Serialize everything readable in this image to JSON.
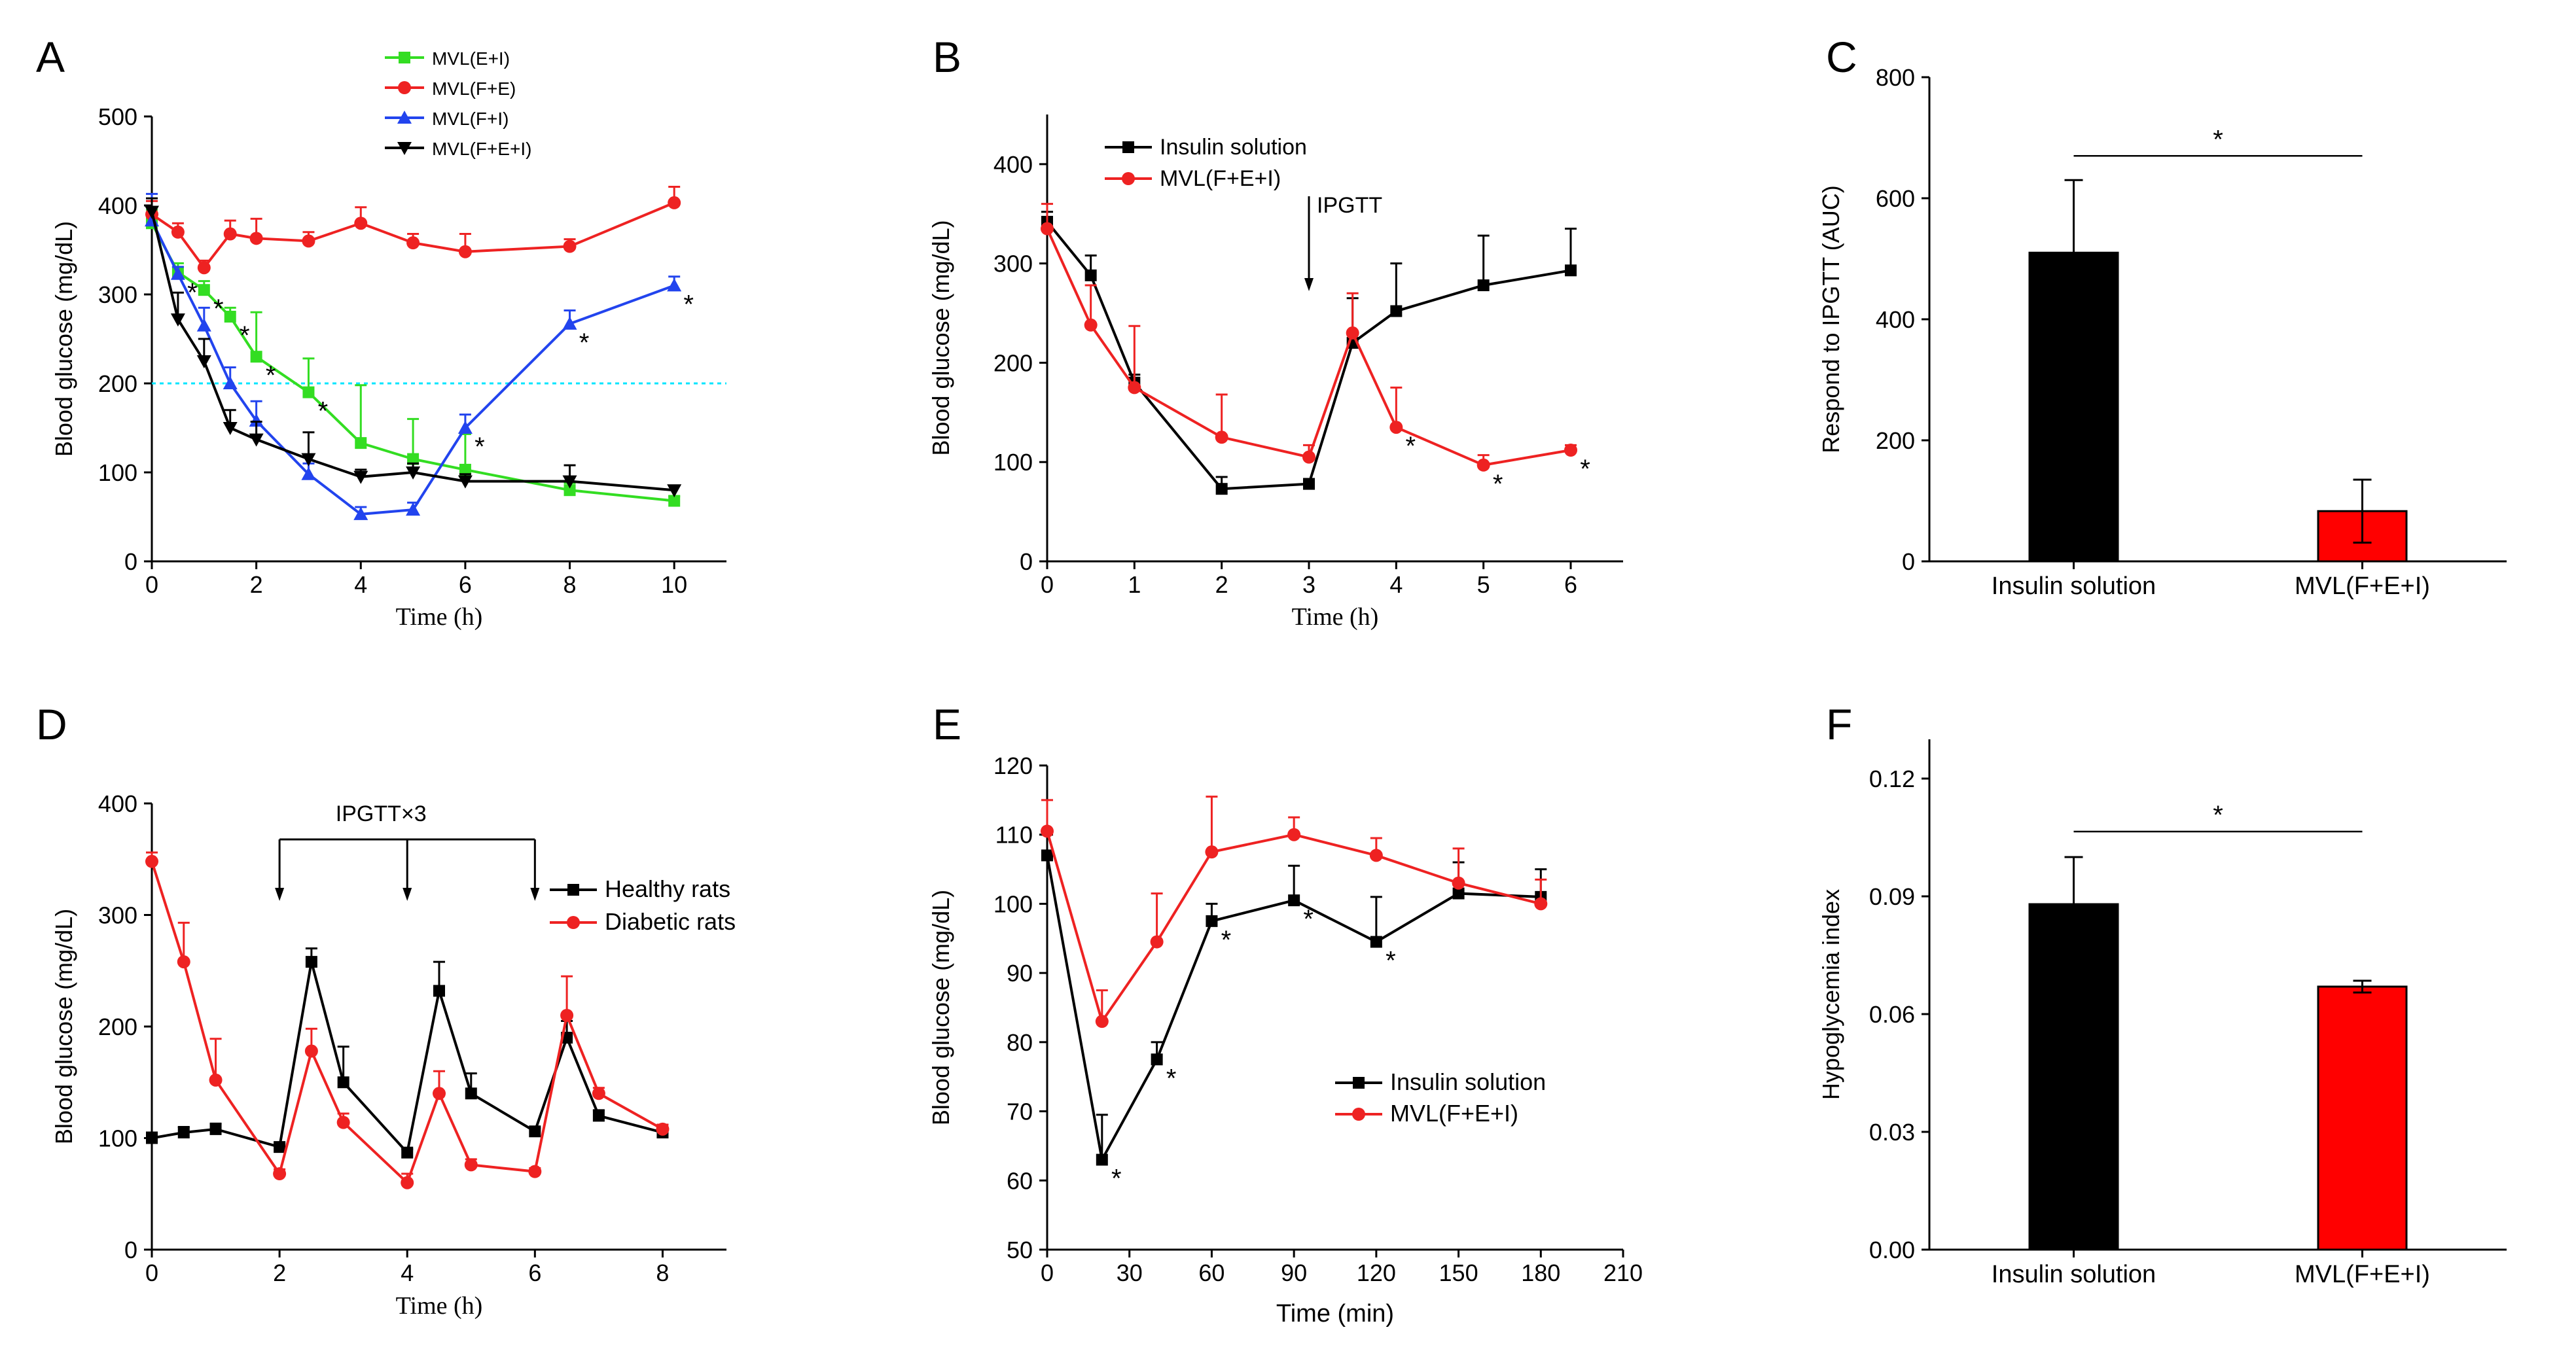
{
  "chart_data": [
    {
      "panel": "A",
      "type": "line",
      "xlabel": "Time (h)",
      "ylabel": "Blood glucose (mg/dL)",
      "xlim": [
        0,
        11
      ],
      "ylim": [
        0,
        500
      ],
      "xticks": [
        0,
        2,
        4,
        6,
        8,
        10
      ],
      "yticks": [
        0,
        100,
        200,
        300,
        400,
        500
      ],
      "reference_line": {
        "y": 200,
        "color": "#00e5ff"
      },
      "legend_position": "top-center",
      "series": [
        {
          "name": "MVL(E+I)",
          "color": "#33dd22",
          "marker": "square",
          "x": [
            0,
            0.5,
            1,
            1.5,
            2,
            3,
            4,
            5,
            6,
            8,
            10
          ],
          "y": [
            380,
            325,
            305,
            275,
            230,
            190,
            133,
            115,
            103,
            80,
            68
          ],
          "err": [
            15,
            10,
            10,
            10,
            50,
            38,
            65,
            45,
            40,
            8,
            5
          ],
          "sig": [
            false,
            false,
            true,
            true,
            true,
            true,
            false,
            false,
            false,
            false,
            false
          ]
        },
        {
          "name": "MVL(F+E)",
          "color": "#ee2222",
          "marker": "circle",
          "x": [
            0,
            0.5,
            1,
            1.5,
            2,
            3,
            4,
            5,
            6,
            8,
            10
          ],
          "y": [
            390,
            370,
            330,
            368,
            363,
            360,
            380,
            358,
            348,
            354,
            403
          ],
          "err": [
            15,
            10,
            8,
            15,
            22,
            10,
            18,
            10,
            20,
            8,
            18
          ],
          "sig": [
            false,
            false,
            false,
            false,
            false,
            false,
            false,
            false,
            false,
            false,
            false
          ]
        },
        {
          "name": "MVL(F+I)",
          "color": "#2244ee",
          "marker": "triangle",
          "x": [
            0,
            0.5,
            1,
            1.5,
            2,
            3,
            4,
            5,
            6,
            8,
            10
          ],
          "y": [
            383,
            323,
            265,
            200,
            158,
            98,
            53,
            58,
            150,
            267,
            310
          ],
          "err": [
            30,
            8,
            20,
            18,
            22,
            12,
            8,
            8,
            15,
            15,
            10
          ],
          "sig": [
            false,
            true,
            false,
            false,
            false,
            false,
            false,
            false,
            true,
            true,
            true
          ]
        },
        {
          "name": "MVL(F+E+I)",
          "color": "#000000",
          "marker": "triangle-down",
          "x": [
            0,
            0.5,
            1,
            1.5,
            2,
            3,
            4,
            5,
            6,
            8,
            10
          ],
          "y": [
            393,
            272,
            225,
            150,
            137,
            115,
            95,
            100,
            90,
            90,
            80
          ],
          "err": [
            15,
            30,
            25,
            20,
            20,
            30,
            8,
            10,
            8,
            18,
            5
          ],
          "sig": [
            false,
            false,
            false,
            false,
            false,
            false,
            false,
            false,
            false,
            false,
            false
          ]
        }
      ]
    },
    {
      "panel": "B",
      "type": "line",
      "xlabel": "Time (h)",
      "ylabel": "Blood glucose (mg/dL)",
      "xlim": [
        0,
        6.6
      ],
      "ylim": [
        0,
        450
      ],
      "xticks": [
        0,
        1,
        2,
        3,
        4,
        5,
        6
      ],
      "yticks": [
        0,
        100,
        200,
        300,
        400
      ],
      "annotation": {
        "text": "IPGTT",
        "x": 3
      },
      "legend_position": "top-left",
      "series": [
        {
          "name": "Insulin solution",
          "color": "#000000",
          "marker": "square",
          "x": [
            0,
            0.5,
            1,
            2,
            3,
            3.5,
            4,
            5,
            6
          ],
          "y": [
            342,
            288,
            180,
            73,
            78,
            220,
            252,
            278,
            293
          ],
          "err": [
            10,
            20,
            8,
            12,
            5,
            45,
            48,
            50,
            42
          ],
          "sig": [
            false,
            false,
            false,
            false,
            false,
            false,
            false,
            false,
            false
          ]
        },
        {
          "name": "MVL(F+E+I)",
          "color": "#ee2222",
          "marker": "circle",
          "x": [
            0,
            0.5,
            1,
            2,
            3,
            3.5,
            4,
            5,
            6
          ],
          "y": [
            335,
            238,
            175,
            125,
            105,
            230,
            135,
            97,
            112
          ],
          "err": [
            25,
            40,
            62,
            43,
            12,
            40,
            40,
            10,
            5
          ],
          "sig": [
            false,
            false,
            false,
            false,
            false,
            false,
            true,
            true,
            true
          ]
        }
      ]
    },
    {
      "panel": "C",
      "type": "bar",
      "xlabel": "",
      "ylabel": "Respond to IPGTT (AUC)",
      "ylim": [
        0,
        800
      ],
      "yticks": [
        0,
        200,
        400,
        600,
        800
      ],
      "categories": [
        "Insulin solution",
        "MVL(F+E+I)"
      ],
      "values": [
        510,
        83
      ],
      "err": [
        120,
        52
      ],
      "colors": [
        "#000000",
        "#ff0000"
      ],
      "significance": "*"
    },
    {
      "panel": "D",
      "type": "line",
      "xlabel": "Time (h)",
      "ylabel": "Blood glucose (mg/dL)",
      "xlim": [
        0,
        9
      ],
      "ylim": [
        0,
        400
      ],
      "xticks": [
        0,
        2,
        4,
        6,
        8
      ],
      "yticks": [
        0,
        100,
        200,
        300,
        400
      ],
      "annotation": {
        "text": "IPGTT×3",
        "x": [
          2,
          4,
          6
        ]
      },
      "legend_position": "top-right",
      "series": [
        {
          "name": "Healthy rats",
          "color": "#000000",
          "marker": "square",
          "x": [
            0,
            0.5,
            1,
            2,
            2.5,
            3,
            4,
            4.5,
            5,
            6,
            6.5,
            7,
            8
          ],
          "y": [
            100,
            105,
            108,
            92,
            258,
            150,
            87,
            232,
            140,
            106,
            190,
            120,
            105
          ],
          "err": [
            5,
            5,
            5,
            3,
            12,
            32,
            3,
            26,
            18,
            3,
            15,
            5,
            3
          ],
          "sig": [
            false,
            false,
            false,
            false,
            false,
            false,
            false,
            false,
            false,
            false,
            false,
            false,
            false
          ]
        },
        {
          "name": "Diabetic rats",
          "color": "#ee2222",
          "marker": "circle",
          "x": [
            0,
            0.5,
            1,
            2,
            2.5,
            3,
            4,
            4.5,
            5,
            6,
            6.5,
            7,
            8
          ],
          "y": [
            348,
            258,
            152,
            68,
            178,
            114,
            60,
            140,
            76,
            70,
            210,
            140,
            108
          ],
          "err": [
            8,
            35,
            37,
            4,
            20,
            8,
            8,
            20,
            5,
            3,
            35,
            5,
            4
          ],
          "sig": [
            false,
            false,
            false,
            false,
            false,
            false,
            false,
            false,
            false,
            false,
            false,
            false,
            false
          ]
        }
      ]
    },
    {
      "panel": "E",
      "type": "line",
      "xlabel": "Time (min)",
      "ylabel": "Blood glucose (mg/dL)",
      "xlim": [
        0,
        210
      ],
      "ylim": [
        50,
        120
      ],
      "xticks": [
        0,
        30,
        60,
        90,
        120,
        150,
        180,
        210
      ],
      "yticks": [
        50,
        60,
        70,
        80,
        90,
        100,
        110,
        120
      ],
      "legend_position": "bottom-right",
      "series": [
        {
          "name": "Insulin solution",
          "color": "#000000",
          "marker": "square",
          "x": [
            0,
            20,
            40,
            60,
            90,
            120,
            150,
            180
          ],
          "y": [
            107,
            63,
            77.5,
            97.5,
            100.5,
            94.5,
            101.5,
            101
          ],
          "err": [
            3,
            6.5,
            2.5,
            2.5,
            5,
            6.5,
            4.5,
            4
          ],
          "sig": [
            false,
            true,
            true,
            true,
            true,
            true,
            false,
            false
          ]
        },
        {
          "name": "MVL(F+E+I)",
          "color": "#ee2222",
          "marker": "circle",
          "x": [
            0,
            20,
            40,
            60,
            90,
            120,
            150,
            180
          ],
          "y": [
            110.5,
            83,
            94.5,
            107.5,
            110,
            107,
            103,
            100
          ],
          "err": [
            4.5,
            4.5,
            7,
            8,
            2.5,
            2.5,
            5,
            3.5
          ],
          "sig": [
            false,
            false,
            false,
            false,
            false,
            false,
            false,
            false
          ]
        }
      ]
    },
    {
      "panel": "F",
      "type": "bar",
      "xlabel": "",
      "ylabel": "Hypoglycemia index",
      "ylim": [
        0,
        0.13
      ],
      "yticks": [
        "0.00",
        "0.03",
        "0.06",
        "0.09",
        "0.12"
      ],
      "categories": [
        "Insulin solution",
        "MVL(F+E+I)"
      ],
      "values": [
        0.088,
        0.067
      ],
      "err": [
        0.012,
        0.0015
      ],
      "colors": [
        "#000000",
        "#ff0000"
      ],
      "significance": "*"
    }
  ]
}
